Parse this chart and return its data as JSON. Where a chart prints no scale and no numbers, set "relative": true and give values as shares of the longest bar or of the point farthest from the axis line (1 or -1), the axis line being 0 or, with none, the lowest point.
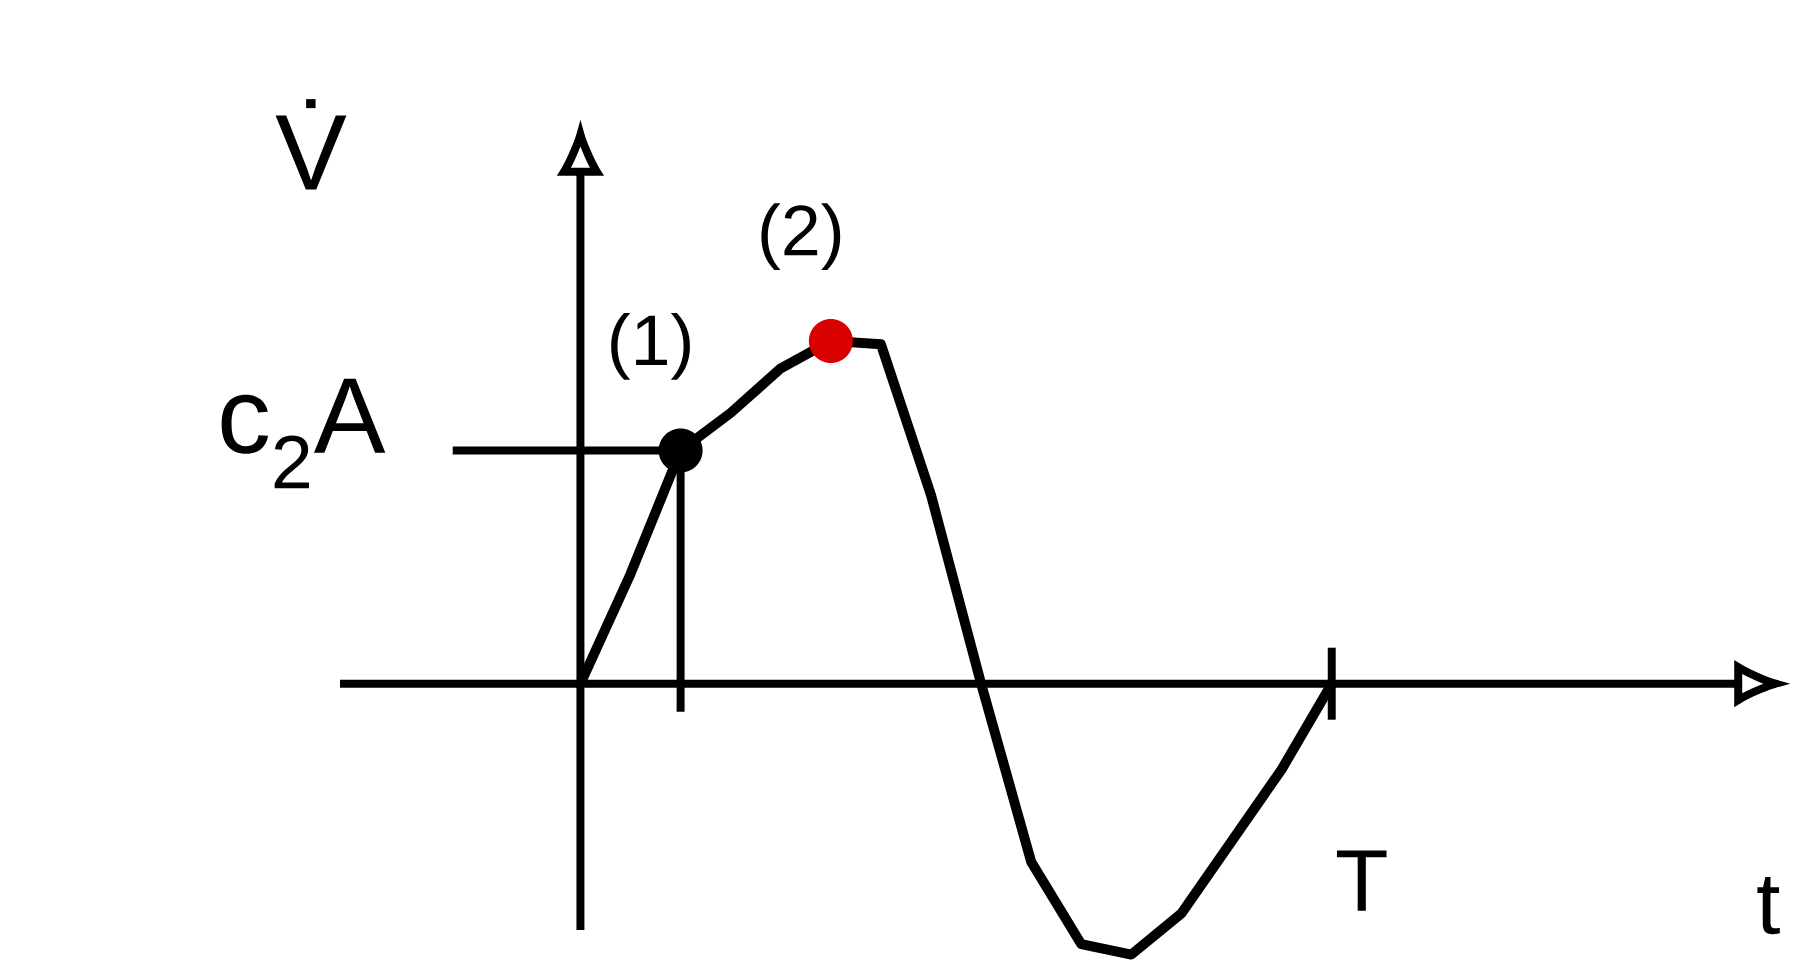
{
  "chart_data": {
    "type": "line",
    "relative": true,
    "xlabel": "t",
    "ylabel": "V̇",
    "color": "#000000",
    "categories": [
      null,
      null,
      null,
      null,
      null,
      null,
      null,
      null,
      null,
      null,
      null,
      null,
      null,
      null,
      null,
      null
    ],
    "values": [
      0,
      0.32,
      0.68,
      0.79,
      0.92,
      1.0,
      0.99,
      0.55,
      0,
      -0.52,
      -0.76,
      -0.79,
      -0.67,
      -0.46,
      -0.25,
      0
    ],
    "ref_lines": [
      {
        "axis": "y",
        "value": 0.68,
        "label": "c$_{2}$A"
      }
    ],
    "annotations": [
      {
        "text": "(1)",
        "y": 0.68
      },
      {
        "text": "(2)",
        "y": 1.0
      },
      "T"
    ],
    "marker": "none",
    "line_style": "solid"
  }
}
